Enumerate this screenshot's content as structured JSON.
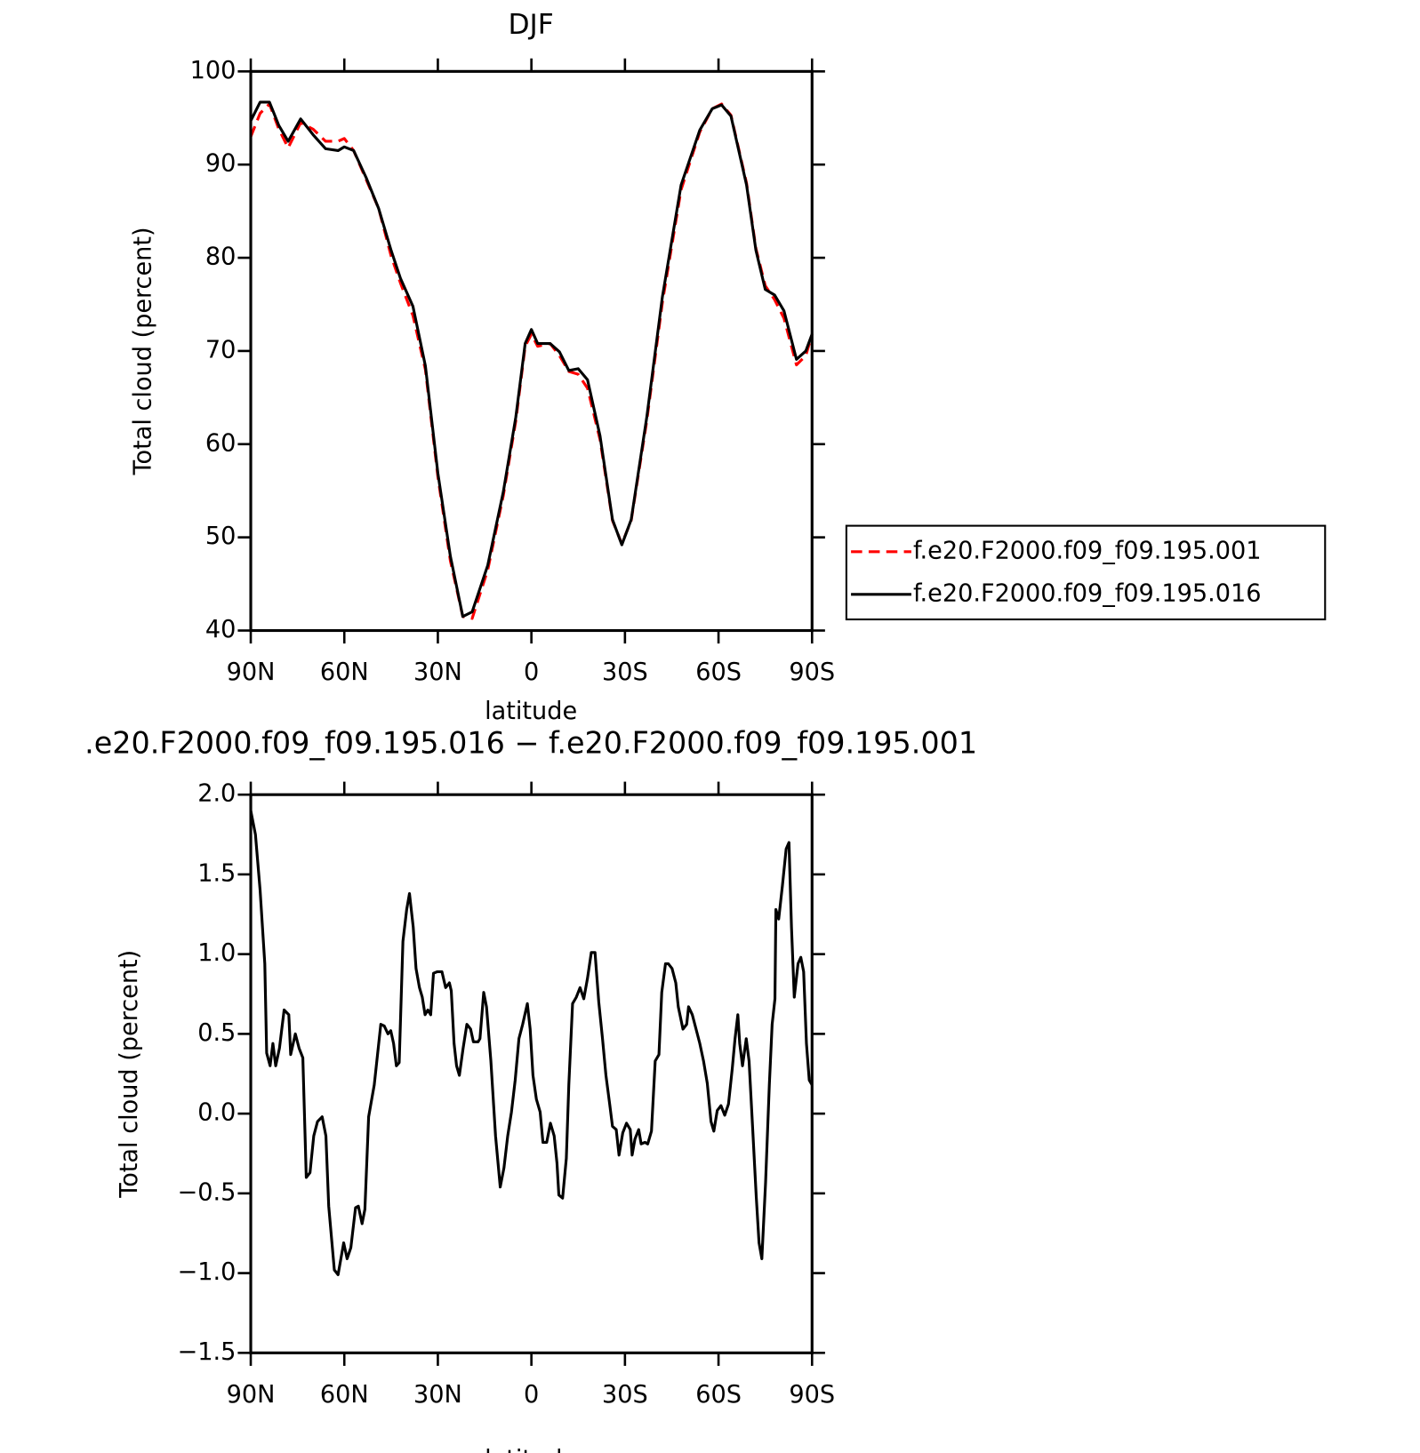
{
  "chart_data": [
    {
      "type": "line",
      "title": "DJF",
      "xlabel": "latitude",
      "ylabel": "Total cloud (percent)",
      "xlim": [
        90,
        -90
      ],
      "xticks": [
        {
          "value": 90,
          "label": "90N"
        },
        {
          "value": 60,
          "label": "60N"
        },
        {
          "value": 30,
          "label": "30N"
        },
        0,
        {
          "value": -30,
          "label": "30S"
        },
        {
          "value": -60,
          "label": "60S"
        },
        {
          "value": -90,
          "label": "90S"
        }
      ],
      "ylim": [
        40,
        100
      ],
      "yticks": [
        40,
        50,
        60,
        70,
        80,
        90,
        100
      ],
      "grid": false,
      "legend": "right",
      "x": [
        90,
        87,
        84,
        81,
        78,
        74,
        70,
        66,
        62,
        60,
        57,
        53,
        49,
        45,
        42,
        38,
        34,
        30,
        26,
        22,
        19,
        14,
        9,
        5,
        2,
        0,
        -2,
        -6,
        -9,
        -12,
        -15,
        -18,
        -22,
        -26,
        -29,
        -32,
        -37,
        -42,
        -48,
        -54,
        -58,
        -61,
        -64,
        -69,
        -72,
        -75,
        -78,
        -81,
        -85,
        -88,
        -90
      ],
      "series": [
        {
          "name": "f.e20.F2000.f09_f09.195.001",
          "color": "#ff0000",
          "dash": true,
          "values": [
            93,
            95.5,
            96.5,
            93.8,
            91.8,
            94.5,
            93.8,
            92.5,
            92.5,
            92.8,
            91.5,
            88.4,
            85.3,
            80.2,
            77.3,
            73.8,
            68,
            56.5,
            47.5,
            41.5,
            41.3,
            46.5,
            54.5,
            62.5,
            70.5,
            71.8,
            70.5,
            70.8,
            69.5,
            67.8,
            67.5,
            66,
            60.5,
            51.8,
            49.3,
            51.8,
            62.5,
            75.2,
            87.3,
            93.5,
            96,
            96.5,
            95.3,
            88,
            81,
            77,
            75.5,
            73.5,
            68.5,
            69.5,
            71.8
          ]
        },
        {
          "name": "f.e20.F2000.f09_f09.195.016",
          "color": "#000000",
          "dash": false,
          "values": [
            94.7,
            96.7,
            96.7,
            94.2,
            92.5,
            94.9,
            93.2,
            91.7,
            91.5,
            91.9,
            91.5,
            88.6,
            85.3,
            80.8,
            77.8,
            74.8,
            68.4,
            56.9,
            48,
            41.5,
            42,
            47,
            54.9,
            62.9,
            70.8,
            72.3,
            70.8,
            70.8,
            69.9,
            67.9,
            68.1,
            66.9,
            60.9,
            51.9,
            49.2,
            51.9,
            62.9,
            75.8,
            87.8,
            93.7,
            96,
            96.4,
            95.2,
            87.8,
            80.8,
            76.6,
            76,
            74.3,
            69.1,
            70,
            71.8
          ]
        }
      ]
    },
    {
      "type": "line",
      "title": ".e20.F2000.f09_f09.195.016 − f.e20.F2000.f09_f09.195.001",
      "xlabel": "latitude",
      "ylabel": "Total cloud (percent)",
      "xlim": [
        90,
        -90
      ],
      "xticks": [
        {
          "value": 90,
          "label": "90N"
        },
        {
          "value": 60,
          "label": "60N"
        },
        {
          "value": 30,
          "label": "30N"
        },
        0,
        {
          "value": -30,
          "label": "30S"
        },
        {
          "value": -60,
          "label": "60S"
        },
        {
          "value": -90,
          "label": "90S"
        }
      ],
      "ylim": [
        -1.5,
        2
      ],
      "yticks": [
        {
          "value": -1.5,
          "label": "−1.5"
        },
        {
          "value": -1,
          "label": "−1.0"
        },
        {
          "value": -0.5,
          "label": "−0.5"
        },
        {
          "value": 0,
          "label": "0.0"
        },
        0.5,
        {
          "value": 1,
          "label": "1.0"
        },
        1.5,
        {
          "value": 2,
          "label": "2.0"
        }
      ],
      "grid": false,
      "color": "#000000",
      "x": [
        90,
        88.5,
        87,
        85.5,
        84.9,
        83.8,
        82.9,
        82,
        80.8,
        79.3,
        77.8,
        77.2,
        75.7,
        74.5,
        73.3,
        72.2,
        71,
        69.8,
        68.6,
        67.1,
        65.9,
        65,
        63.2,
        62,
        60.2,
        59.1,
        57.9,
        56.4,
        55.5,
        54.3,
        53.4,
        52.2,
        50.4,
        48.3,
        47.2,
        46,
        45.1,
        44.2,
        43.3,
        42.4,
        41.2,
        40,
        39.1,
        37.9,
        37,
        35.9,
        35,
        34.1,
        33.2,
        32.3,
        31.4,
        30.2,
        28.7,
        27.5,
        26.3,
        25.7,
        24.8,
        24,
        23.1,
        21.9,
        20.7,
        19.5,
        18.6,
        17.1,
        16.5,
        15.3,
        14.4,
        13,
        11.5,
        10,
        8.8,
        7.6,
        6.4,
        5.2,
        4,
        2.8,
        1.3,
        0.4,
        -0.5,
        -1.6,
        -2.8,
        -3.7,
        -4.9,
        -6.1,
        -7.3,
        -8.2,
        -8.8,
        -10,
        -11.2,
        -12,
        -13.2,
        -14.4,
        -15.6,
        -16.8,
        -18,
        -19.2,
        -20.4,
        -21.6,
        -22.8,
        -23.9,
        -25.1,
        -26,
        -27.2,
        -28.1,
        -29.3,
        -30.5,
        -31.7,
        -32.3,
        -33.2,
        -34.4,
        -35.2,
        -36.4,
        -37.3,
        -38.5,
        -39.7,
        -40.9,
        -41.8,
        -43,
        -43.9,
        -45.1,
        -46.3,
        -47.1,
        -48.6,
        -49.8,
        -50.4,
        -51.6,
        -52.8,
        -54,
        -55.2,
        -56.4,
        -57.6,
        -58.5,
        -59.6,
        -60.8,
        -62,
        -63.2,
        -64.4,
        -65.3,
        -66.2,
        -66.8,
        -67.7,
        -68.9,
        -69.8,
        -71,
        -72.1,
        -73,
        -73.9,
        -75.1,
        -76.3,
        -77.2,
        -78.1,
        -78.4,
        -79.3,
        -80.5,
        -81.7,
        -82.6,
        -83.4,
        -84.3,
        -85.5,
        -86.4,
        -87.3,
        -88.2,
        -89.1,
        -90
      ],
      "values": [
        1.9,
        1.75,
        1.4,
        0.94,
        0.38,
        0.3,
        0.44,
        0.3,
        0.41,
        0.65,
        0.62,
        0.37,
        0.5,
        0.41,
        0.35,
        -0.4,
        -0.37,
        -0.14,
        -0.05,
        -0.02,
        -0.14,
        -0.58,
        -0.98,
        -1.01,
        -0.81,
        -0.91,
        -0.84,
        -0.59,
        -0.58,
        -0.69,
        -0.6,
        -0.02,
        0.18,
        0.56,
        0.55,
        0.5,
        0.52,
        0.44,
        0.3,
        0.32,
        1.08,
        1.28,
        1.38,
        1.17,
        0.91,
        0.79,
        0.73,
        0.62,
        0.65,
        0.62,
        0.88,
        0.89,
        0.89,
        0.79,
        0.82,
        0.77,
        0.44,
        0.3,
        0.24,
        0.41,
        0.56,
        0.53,
        0.45,
        0.45,
        0.47,
        0.76,
        0.67,
        0.33,
        -0.14,
        -0.46,
        -0.34,
        -0.14,
        0.01,
        0.21,
        0.47,
        0.56,
        0.69,
        0.53,
        0.24,
        0.09,
        0.01,
        -0.18,
        -0.18,
        -0.06,
        -0.14,
        -0.31,
        -0.51,
        -0.53,
        -0.28,
        0.18,
        0.69,
        0.73,
        0.79,
        0.72,
        0.85,
        1.01,
        1.01,
        0.7,
        0.47,
        0.24,
        0.06,
        -0.08,
        -0.1,
        -0.26,
        -0.12,
        -0.06,
        -0.1,
        -0.26,
        -0.16,
        -0.1,
        -0.19,
        -0.18,
        -0.19,
        -0.11,
        0.33,
        0.37,
        0.76,
        0.94,
        0.94,
        0.91,
        0.82,
        0.67,
        0.53,
        0.56,
        0.67,
        0.62,
        0.53,
        0.44,
        0.33,
        0.19,
        -0.05,
        -0.11,
        0.02,
        0.05,
        -0.01,
        0.06,
        0.28,
        0.47,
        0.62,
        0.44,
        0.3,
        0.47,
        0.33,
        -0.11,
        -0.52,
        -0.81,
        -0.91,
        -0.43,
        0.18,
        0.56,
        0.72,
        1.28,
        1.22,
        1.43,
        1.66,
        1.7,
        1.17,
        0.73,
        0.94,
        0.98,
        0.89,
        0.44,
        0.21,
        0.18
      ]
    }
  ]
}
